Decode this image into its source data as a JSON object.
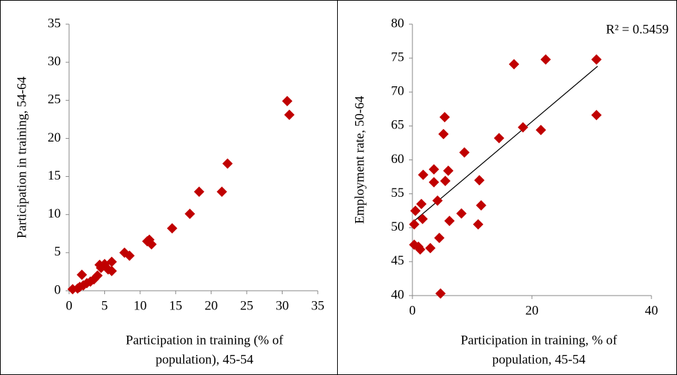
{
  "chart_data": [
    {
      "type": "scatter",
      "xlabel": [
        "Participation in training (% of",
        "population), 45-54"
      ],
      "ylabel": "Participation in training, 54-64",
      "xlim": [
        0,
        35
      ],
      "xticks": [
        0,
        5,
        10,
        15,
        20,
        25,
        30,
        35
      ],
      "ylim": [
        0,
        35
      ],
      "yticks": [
        0,
        5,
        10,
        15,
        20,
        25,
        30,
        35
      ],
      "color": "#c00000",
      "x": [
        0.5,
        1.2,
        1.5,
        1.8,
        2,
        2.5,
        3,
        3.5,
        4,
        4.3,
        4.5,
        5,
        5.5,
        6,
        6,
        7.8,
        8.5,
        11,
        11.3,
        11.6,
        14.5,
        17,
        18.3,
        21.5,
        22.3,
        30.7,
        31
      ],
      "y": [
        0.2,
        0.3,
        0.5,
        2.1,
        0.7,
        1,
        1.2,
        1.5,
        2,
        3.4,
        3,
        3.5,
        2.8,
        3.8,
        2.6,
        5,
        4.6,
        6.5,
        6.7,
        6.1,
        8.2,
        10.1,
        13,
        13,
        16.7,
        24.9,
        23.1
      ]
    },
    {
      "type": "scatter",
      "xlabel": [
        "Participation in training, % of",
        "population, 45-54"
      ],
      "ylabel": "Employment rate, 50-64",
      "xlim": [
        0,
        40
      ],
      "xticks": [
        0,
        20,
        40
      ],
      "ylim": [
        40,
        80
      ],
      "yticks": [
        40,
        45,
        50,
        55,
        60,
        65,
        70,
        75,
        80
      ],
      "color": "#c00000",
      "x": [
        0.3,
        0.5,
        0.3,
        1,
        1.3,
        1.5,
        1.7,
        1.8,
        3,
        3.6,
        3.6,
        4.2,
        4.5,
        4.7,
        5.2,
        5.4,
        5.5,
        6,
        6.2,
        8.2,
        8.7,
        11,
        11.2,
        11.5,
        14.5,
        17,
        18.5,
        21.5,
        22.3,
        30.8,
        30.8
      ],
      "y": [
        50.5,
        52.5,
        47.5,
        47.2,
        46.8,
        53.5,
        51.3,
        57.8,
        47,
        58.6,
        56.7,
        54,
        48.5,
        40.3,
        63.8,
        66.3,
        56.9,
        58.4,
        51,
        52.1,
        61.1,
        50.5,
        57,
        53.3,
        63.2,
        74.1,
        64.8,
        64.4,
        74.8,
        74.8,
        66.6
      ],
      "trendline": {
        "x": [
          0.3,
          31
        ],
        "y": [
          51,
          73.8
        ],
        "color": "#000000"
      },
      "annotation": "R² = 0.5459"
    }
  ]
}
